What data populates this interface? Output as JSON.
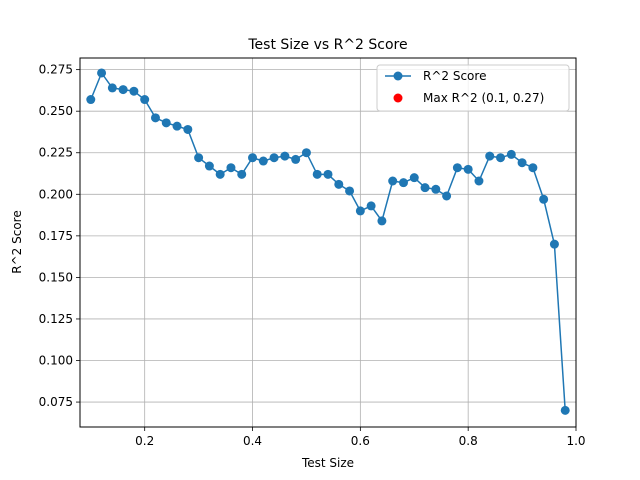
{
  "chart_data": {
    "type": "line",
    "title": "Test Size vs R^2 Score",
    "xlabel": "Test Size",
    "ylabel": "R^2 Score",
    "xlim": [
      0.08,
      1.0
    ],
    "ylim": [
      0.06,
      0.282
    ],
    "xticks": [
      "0.2",
      "0.4",
      "0.6",
      "0.8",
      "1.0"
    ],
    "xtick_values": [
      0.2,
      0.4,
      0.6,
      0.8,
      1.0
    ],
    "yticks": [
      "0.075",
      "0.100",
      "0.125",
      "0.150",
      "0.175",
      "0.200",
      "0.225",
      "0.250",
      "0.275"
    ],
    "ytick_values": [
      0.075,
      0.1,
      0.125,
      0.15,
      0.175,
      0.2,
      0.225,
      0.25,
      0.275
    ],
    "grid": true,
    "legend_position": "top-right",
    "series": [
      {
        "name": "R^2 Score",
        "color": "#1f77b4",
        "marker": "circle",
        "x": [
          0.1,
          0.12,
          0.14,
          0.16,
          0.18,
          0.2,
          0.22,
          0.24,
          0.26,
          0.28,
          0.3,
          0.32,
          0.34,
          0.36,
          0.38,
          0.4,
          0.42,
          0.44,
          0.46,
          0.48,
          0.5,
          0.52,
          0.54,
          0.56,
          0.58,
          0.6,
          0.62,
          0.64,
          0.66,
          0.68,
          0.7,
          0.72,
          0.74,
          0.76,
          0.78,
          0.8,
          0.82,
          0.84,
          0.86,
          0.88,
          0.9,
          0.92,
          0.94,
          0.96,
          0.98
        ],
        "y": [
          0.257,
          0.273,
          0.264,
          0.263,
          0.262,
          0.257,
          0.246,
          0.243,
          0.241,
          0.239,
          0.222,
          0.217,
          0.212,
          0.216,
          0.212,
          0.222,
          0.22,
          0.222,
          0.223,
          0.221,
          0.225,
          0.212,
          0.212,
          0.206,
          0.202,
          0.19,
          0.193,
          0.184,
          0.208,
          0.207,
          0.21,
          0.204,
          0.203,
          0.199,
          0.216,
          0.215,
          0.208,
          0.223,
          0.222,
          0.224,
          0.219,
          0.216,
          0.197,
          0.17,
          0.07
        ]
      },
      {
        "name": "Max R^2 (0.1, 0.27)",
        "color": "#ff0000",
        "marker": "circle",
        "x": [],
        "y": []
      }
    ]
  }
}
